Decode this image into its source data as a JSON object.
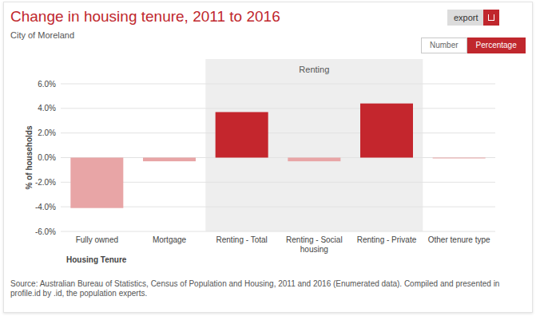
{
  "chart_data": {
    "type": "bar",
    "title": "Change in housing tenure, 2011 to 2016",
    "subtitle": "City of Moreland",
    "x_label": "Housing Tenure",
    "y_label": "% of households",
    "categories": [
      "Fully owned",
      "Mortgage",
      "Renting - Total",
      "Renting - Social housing",
      "Renting - Private",
      "Other tenure type"
    ],
    "values": [
      -4.1,
      -0.3,
      3.7,
      -0.3,
      4.4,
      -0.05
    ],
    "colors": [
      "#e8a5a6",
      "#e8a5a6",
      "#c4262d",
      "#e8a5a6",
      "#c4262d",
      "#e8a5a6"
    ],
    "ylim": [
      -6,
      6
    ],
    "yticks": [
      {
        "value": -6,
        "label": "-6.0%"
      },
      {
        "value": -4,
        "label": "-4.0%"
      },
      {
        "value": -2,
        "label": "-2.0%"
      },
      {
        "value": 0,
        "label": "0.0%"
      },
      {
        "value": 2,
        "label": "2.0%"
      },
      {
        "value": 4,
        "label": "4.0%"
      },
      {
        "value": 6,
        "label": "6.0%"
      }
    ],
    "grid": true,
    "annotations": [
      {
        "text": "Renting",
        "from": "Renting - Total",
        "to": "Renting - Private"
      }
    ],
    "source": "Source: Australian Bureau of Statistics, Census of Population and Housing, 2011 and 2016 (Enumerated data). Compiled and presented in profile.id by .id, the population experts."
  },
  "controls": {
    "export": "export",
    "toggle": [
      "Number",
      "Percentage"
    ],
    "active": "Percentage"
  }
}
